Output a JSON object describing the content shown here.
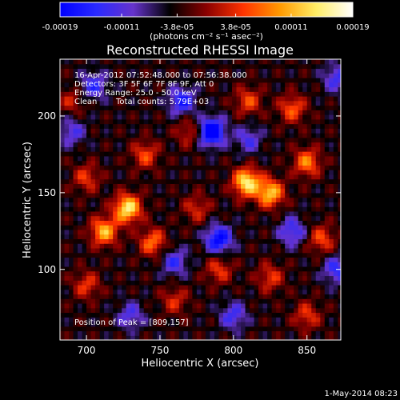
{
  "chart_data": {
    "type": "heatmap",
    "title": "Reconstructed RHESSI Image",
    "xlabel": "Heliocentric X (arcsec)",
    "ylabel": "Heliocentric Y (arcsec)",
    "xlim": [
      682,
      873
    ],
    "ylim": [
      54,
      237
    ],
    "x_ticks": [
      700,
      750,
      800,
      850
    ],
    "y_ticks": [
      100,
      150,
      200
    ],
    "x_tick_labels": [
      "700",
      "750",
      "800",
      "850"
    ],
    "y_tick_labels": [
      "100",
      "150",
      "200"
    ],
    "colorbar": {
      "range": [
        -0.00019,
        0.00019
      ],
      "tick_values": [
        -0.00019,
        -0.00011,
        -3.8e-05,
        3.8e-05,
        0.00011,
        0.00019
      ],
      "tick_labels": [
        "-0.00019",
        "-0.00011",
        "-3.8e-05",
        "3.8e-05",
        "0.00011",
        "0.00019"
      ],
      "units_label": "(photons cm⁻² s⁻¹ asec⁻²)",
      "colors": [
        "#0000ff",
        "#2a2aff",
        "#6633cc",
        "#000000",
        "#8a0000",
        "#ff3300",
        "#ff9900",
        "#ffee66",
        "#ffffff"
      ]
    },
    "annotations": {
      "time_range": "16-Apr-2012 07:52:48.000 to 07:56:38.000",
      "detectors": "Detectors: 3F 5F 6F 7F 8F 9F, Att 0",
      "energy_range": "Energy Range: 25.0 - 50.0 keV",
      "method": "Clean",
      "total_counts": "Total counts: 5.79E+03",
      "peak_position": "Position of Peak = [809,157]"
    },
    "features": [
      {
        "x": 728,
        "y": 140,
        "value": 0.00019
      },
      {
        "x": 712,
        "y": 125,
        "value": 0.00015
      },
      {
        "x": 745,
        "y": 118,
        "value": 0.00011
      },
      {
        "x": 700,
        "y": 160,
        "value": 8e-05
      },
      {
        "x": 740,
        "y": 175,
        "value": 9e-05
      },
      {
        "x": 770,
        "y": 190,
        "value": 7e-05
      },
      {
        "x": 809,
        "y": 157,
        "value": 0.00019
      },
      {
        "x": 825,
        "y": 150,
        "value": 0.00016
      },
      {
        "x": 850,
        "y": 170,
        "value": 0.00012
      },
      {
        "x": 840,
        "y": 205,
        "value": 0.0001
      },
      {
        "x": 810,
        "y": 210,
        "value": 9e-05
      },
      {
        "x": 860,
        "y": 120,
        "value": 9e-05
      },
      {
        "x": 790,
        "y": 100,
        "value": 8e-05
      },
      {
        "x": 825,
        "y": 95,
        "value": 8e-05
      },
      {
        "x": 760,
        "y": 80,
        "value": 7e-05
      },
      {
        "x": 850,
        "y": 70,
        "value": 8e-05
      },
      {
        "x": 700,
        "y": 90,
        "value": 8e-05
      },
      {
        "x": 690,
        "y": 210,
        "value": 6e-05
      },
      {
        "x": 775,
        "y": 140,
        "value": 7e-05
      },
      {
        "x": 785,
        "y": 190,
        "value": -0.00019
      },
      {
        "x": 790,
        "y": 120,
        "value": -0.00015
      },
      {
        "x": 765,
        "y": 210,
        "value": -0.00012
      },
      {
        "x": 705,
        "y": 220,
        "value": -0.0001
      },
      {
        "x": 870,
        "y": 225,
        "value": -9e-05
      },
      {
        "x": 870,
        "y": 100,
        "value": -0.0001
      },
      {
        "x": 730,
        "y": 70,
        "value": -8e-05
      },
      {
        "x": 800,
        "y": 70,
        "value": -9e-05
      },
      {
        "x": 760,
        "y": 105,
        "value": -9e-05
      },
      {
        "x": 840,
        "y": 125,
        "value": -0.0001
      },
      {
        "x": 690,
        "y": 190,
        "value": -8e-05
      },
      {
        "x": 810,
        "y": 185,
        "value": -8e-05
      }
    ]
  },
  "footer": {
    "date": "1-May-2014 08:23"
  }
}
